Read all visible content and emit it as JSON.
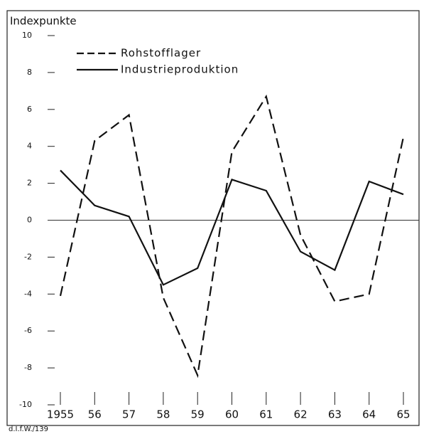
{
  "chart_data": {
    "type": "line",
    "y_axis_label": "Indexpunkte",
    "source": "d.I.f.W./139",
    "categories": [
      "1955",
      "56",
      "57",
      "58",
      "59",
      "60",
      "61",
      "62",
      "63",
      "64",
      "65"
    ],
    "series": [
      {
        "name": "Rohstofflager",
        "color": "#111111",
        "dash": "dashed",
        "values": [
          -4.1,
          4.3,
          5.7,
          -4.2,
          -8.4,
          3.7,
          6.7,
          -0.8,
          -4.4,
          -4.0,
          4.5
        ]
      },
      {
        "name": "Industrieproduktion",
        "color": "#111111",
        "dash": "solid",
        "values": [
          2.7,
          0.8,
          0.2,
          -3.5,
          -2.6,
          2.2,
          1.6,
          -1.7,
          -2.7,
          2.1,
          1.4
        ]
      }
    ],
    "ylim": [
      -10,
      10
    ],
    "yticks": [
      -10,
      -8,
      -6,
      -4,
      -2,
      0,
      2,
      4,
      6,
      8,
      10
    ],
    "legend": "upper left"
  }
}
